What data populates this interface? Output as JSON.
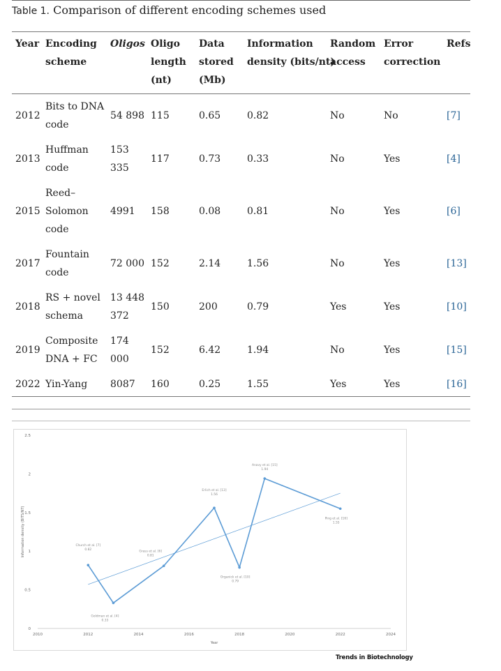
{
  "caption": {
    "label": "Table 1.",
    "text": "Comparison of different encoding schemes used"
  },
  "table": {
    "headers": [
      [
        "Year"
      ],
      [
        "Encoding",
        "scheme"
      ],
      [
        "Oligos"
      ],
      [
        "Oligo",
        "length",
        "(nt)"
      ],
      [
        "Data",
        "stored",
        "(Mb)"
      ],
      [
        "Information",
        "density (bits/nt)"
      ],
      [
        "Random",
        "access"
      ],
      [
        "Error",
        "correction"
      ],
      [
        "Refs"
      ]
    ],
    "rows": [
      {
        "year": "2012",
        "scheme": [
          "Bits to DNA",
          "code"
        ],
        "oligos": [
          "54 898"
        ],
        "length": "115",
        "data": "0.65",
        "density": "0.82",
        "random": "No",
        "error": "No",
        "ref": "[7]"
      },
      {
        "year": "2013",
        "scheme": [
          "Huffman",
          "code"
        ],
        "oligos": [
          "153",
          "335"
        ],
        "length": "117",
        "data": "0.73",
        "density": "0.33",
        "random": "No",
        "error": "Yes",
        "ref": "[4]"
      },
      {
        "year": "2015",
        "scheme": [
          "Reed–",
          "Solomon",
          "code"
        ],
        "oligos": [
          "4991"
        ],
        "length": "158",
        "data": "0.08",
        "density": "0.81",
        "random": "No",
        "error": "Yes",
        "ref": "[6]"
      },
      {
        "year": "2017",
        "scheme": [
          "Fountain",
          "code"
        ],
        "oligos": [
          "72 000"
        ],
        "length": "152",
        "data": "2.14",
        "density": "1.56",
        "random": "No",
        "error": "Yes",
        "ref": "[13]"
      },
      {
        "year": "2018",
        "scheme": [
          "RS + novel",
          "schema"
        ],
        "oligos": [
          "13 448",
          "372"
        ],
        "length": "150",
        "data": "200",
        "density": "0.79",
        "random": "Yes",
        "error": "Yes",
        "ref": "[10]"
      },
      {
        "year": "2019",
        "scheme": [
          "Composite",
          "DNA + FC"
        ],
        "oligos": [
          "174",
          "000"
        ],
        "length": "152",
        "data": "6.42",
        "density": "1.94",
        "random": "No",
        "error": "Yes",
        "ref": "[15]"
      },
      {
        "year": "2022",
        "scheme": [
          "Yin-Yang"
        ],
        "oligos": [
          "8087"
        ],
        "length": "160",
        "data": "0.25",
        "density": "1.55",
        "random": "Yes",
        "error": "Yes",
        "ref": "[16]"
      }
    ]
  },
  "chart_data": {
    "type": "line",
    "xlabel": "Year",
    "ylabel": "Information density (BITS/NT)",
    "xlim": [
      2010,
      2024
    ],
    "ylim": [
      0,
      2.5
    ],
    "xticks": [
      "2010",
      "2012",
      "2014",
      "2016",
      "2018",
      "2020",
      "2022",
      "2024"
    ],
    "yticks": [
      "0",
      "0.5",
      "1",
      "1.5",
      "2",
      "2.5"
    ],
    "grid": false,
    "series": [
      {
        "x": [
          2012,
          2013,
          2015,
          2017,
          2018,
          2019,
          2022
        ],
        "y": [
          0.82,
          0.33,
          0.81,
          1.56,
          0.79,
          1.94,
          1.55
        ],
        "color": "#5b9bd5"
      }
    ],
    "trendline": {
      "x": [
        2012,
        2022
      ],
      "y": [
        0.57,
        1.75
      ],
      "color": "#5b9bd5"
    },
    "annotations": [
      {
        "name": "Church et al. [7]",
        "value": "0.82"
      },
      {
        "name": "Goldman et al. [4]",
        "value": "0.33"
      },
      {
        "name": "Grass et al. [6]",
        "value": "0.81"
      },
      {
        "name": "Erlich et al. [13]",
        "value": "1.56"
      },
      {
        "name": "Organick et al. [10]",
        "value": "0.79"
      },
      {
        "name": "Anavy et al. [15]",
        "value": "1.94"
      },
      {
        "name": "Ping et al. [16]",
        "value": "1.55"
      }
    ]
  },
  "footer": {
    "brand": "Trends in Biotechnology"
  }
}
